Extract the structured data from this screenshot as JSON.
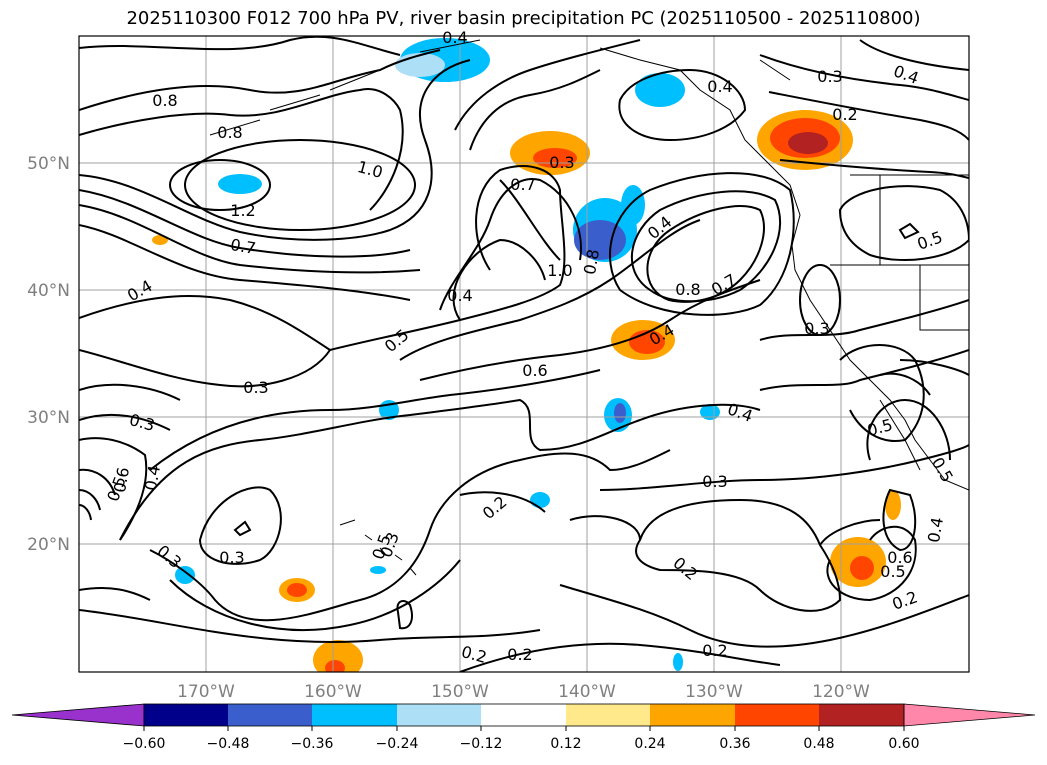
{
  "title": "2025110300 F012 700 hPa PV, river basin precipitation PC (2025110500 - 2025110800)",
  "map": {
    "lon_labels": [
      "170°W",
      "160°W",
      "150°W",
      "140°W",
      "130°W",
      "120°W"
    ],
    "lat_labels": [
      "50°N",
      "40°N",
      "30°N",
      "20°N"
    ],
    "contour_labels": [
      "0.8",
      "0.8",
      "1.0",
      "1.2",
      "0.7",
      "0.4",
      "0.3",
      "0.3",
      "0.5",
      "0.4",
      "0.3",
      "0.6",
      "0.5",
      "0.3",
      "0.2",
      "0.5",
      "0.3",
      "0.2",
      "0.2",
      "0.7",
      "1.0",
      "0.8",
      "0.4",
      "0.4",
      "0.6",
      "0.3",
      "0.4",
      "0.8",
      "0.7",
      "0.4",
      "0.3",
      "0.3",
      "0.2",
      "0.4",
      "0.5",
      "0.5",
      "0.3",
      "0.4",
      "0.2",
      "0.2",
      "0.6",
      "0.5",
      "0.2",
      "0.4",
      "0.5",
      "0.4"
    ]
  },
  "colorbar": {
    "ticks": [
      "−0.60",
      "−0.48",
      "−0.36",
      "−0.24",
      "−0.12",
      "0.12",
      "0.24",
      "0.36",
      "0.48",
      "0.60"
    ],
    "colors": [
      "#9932CC",
      "#00008B",
      "#3A5FCD",
      "#00BFFF",
      "#ADDFF7",
      "#FFFFFF",
      "#FFE98A",
      "#FFA500",
      "#FF4500",
      "#B22222",
      "#FF88AA"
    ]
  }
}
